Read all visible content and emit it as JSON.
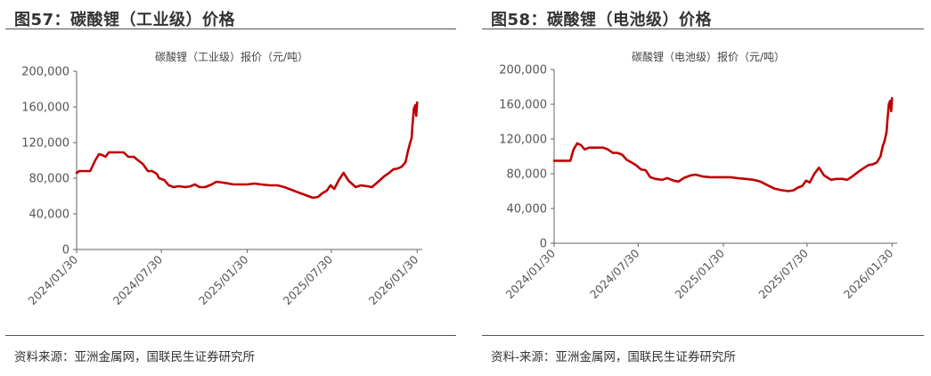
{
  "figures": [
    {
      "label": "图57：碳酸锂（工业级）价格",
      "source": "资料来源：亚洲金属网，国联民生证券研究所"
    },
    {
      "label": "图58：碳酸锂（电池级）价格",
      "source": "资料-来源：亚洲金属网，国联民生证券研究所"
    }
  ],
  "colors": {
    "line": "#c00000",
    "axis": "#666666",
    "text": "#555555"
  },
  "chart_data": [
    {
      "type": "line",
      "title": "碳酸锂（工业级）报价（元/吨）",
      "xlabel": "",
      "ylabel": "",
      "x_ticks": [
        "2024/01/30",
        "2024/07/30",
        "2025/01/30",
        "2025/07/30",
        "2026/01/30"
      ],
      "y_ticks": [
        "0",
        "40,000",
        "80,000",
        "120,000",
        "160,000",
        "200,000"
      ],
      "ylim": [
        0,
        200000
      ],
      "xlim": [
        "2024-01-30",
        "2026-02-10"
      ],
      "grid": false,
      "series": [
        {
          "x": [
            "2024-01-30",
            "2024-02-05",
            "2024-02-20",
            "2024-02-28",
            "2024-03-10",
            "2024-03-18",
            "2024-03-25",
            "2024-04-01",
            "2024-04-08",
            "2024-04-25",
            "2024-05-10",
            "2024-05-20",
            "2024-06-01",
            "2024-06-10",
            "2024-06-20",
            "2024-07-01",
            "2024-07-10",
            "2024-07-20",
            "2024-07-25",
            "2024-08-05",
            "2024-08-15",
            "2024-08-25",
            "2024-09-05",
            "2024-09-20",
            "2024-10-01",
            "2024-10-10",
            "2024-10-20",
            "2024-11-01",
            "2024-11-15",
            "2024-11-25",
            "2024-12-10",
            "2025-01-01",
            "2025-01-30",
            "2025-02-15",
            "2025-03-01",
            "2025-03-20",
            "2025-04-05",
            "2025-04-20",
            "2025-05-10",
            "2025-05-25",
            "2025-06-10",
            "2025-06-20",
            "2025-07-01",
            "2025-07-10",
            "2025-07-20",
            "2025-07-28",
            "2025-08-05",
            "2025-08-15",
            "2025-08-25",
            "2025-09-05",
            "2025-09-20",
            "2025-10-01",
            "2025-10-15",
            "2025-10-25",
            "2025-11-05",
            "2025-11-20",
            "2025-12-01",
            "2025-12-10",
            "2025-12-20",
            "2025-12-28",
            "2026-01-05",
            "2026-01-10",
            "2026-01-14",
            "2026-01-18",
            "2026-01-20",
            "2026-01-23",
            "2026-01-26",
            "2026-01-28",
            "2026-01-30"
          ],
          "values": [
            86000,
            88000,
            88000,
            88000,
            100000,
            107000,
            106000,
            104000,
            109000,
            109000,
            109000,
            104000,
            104000,
            100000,
            96000,
            88000,
            88000,
            85000,
            80000,
            78000,
            72000,
            70000,
            71000,
            70000,
            71000,
            73000,
            70000,
            70000,
            73000,
            76000,
            75000,
            73000,
            73000,
            74000,
            73000,
            72000,
            72000,
            70000,
            66000,
            63000,
            60000,
            58000,
            59000,
            63000,
            66000,
            72000,
            68000,
            78000,
            86000,
            77000,
            70000,
            72000,
            71000,
            70000,
            75000,
            82000,
            86000,
            90000,
            91000,
            93000,
            98000,
            110000,
            118000,
            125000,
            140000,
            158000,
            162000,
            150000,
            165000
          ]
        }
      ]
    },
    {
      "type": "line",
      "title": "碳酸锂（电池级）报价（元/吨）",
      "xlabel": "",
      "ylabel": "",
      "x_ticks": [
        "2024/01/30",
        "2024/07/30",
        "2025/01/30",
        "2025/07/30",
        "2026/01/30"
      ],
      "y_ticks": [
        "0",
        "40,000",
        "80,000",
        "120,000",
        "160,000",
        "200,000"
      ],
      "ylim": [
        0,
        200000
      ],
      "xlim": [
        "2024-01-30",
        "2026-02-10"
      ],
      "grid": false,
      "series": [
        {
          "x": [
            "2024-01-30",
            "2024-02-10",
            "2024-02-25",
            "2024-03-05",
            "2024-03-12",
            "2024-03-20",
            "2024-03-28",
            "2024-04-05",
            "2024-04-15",
            "2024-05-01",
            "2024-05-15",
            "2024-05-25",
            "2024-06-05",
            "2024-06-15",
            "2024-06-25",
            "2024-07-05",
            "2024-07-15",
            "2024-07-25",
            "2024-08-05",
            "2024-08-15",
            "2024-08-25",
            "2024-09-05",
            "2024-09-20",
            "2024-10-01",
            "2024-10-15",
            "2024-10-25",
            "2024-11-05",
            "2024-11-20",
            "2024-12-01",
            "2024-12-15",
            "2025-01-01",
            "2025-01-30",
            "2025-02-15",
            "2025-03-01",
            "2025-03-20",
            "2025-04-05",
            "2025-04-20",
            "2025-05-05",
            "2025-05-20",
            "2025-06-05",
            "2025-06-20",
            "2025-07-01",
            "2025-07-10",
            "2025-07-20",
            "2025-07-28",
            "2025-08-05",
            "2025-08-15",
            "2025-08-25",
            "2025-09-05",
            "2025-09-20",
            "2025-10-01",
            "2025-10-15",
            "2025-10-25",
            "2025-11-05",
            "2025-11-20",
            "2025-12-01",
            "2025-12-10",
            "2025-12-20",
            "2025-12-28",
            "2026-01-05",
            "2026-01-10",
            "2026-01-14",
            "2026-01-18",
            "2026-01-20",
            "2026-01-23",
            "2026-01-26",
            "2026-01-28",
            "2026-01-30"
          ],
          "values": [
            95000,
            95000,
            95000,
            95000,
            108000,
            115000,
            113000,
            108000,
            110000,
            110000,
            110000,
            108000,
            104000,
            104000,
            102000,
            96000,
            93000,
            90000,
            85000,
            84000,
            76000,
            74000,
            73000,
            75000,
            72000,
            71000,
            75000,
            78000,
            79000,
            77000,
            76000,
            76000,
            76000,
            75000,
            74000,
            73000,
            71000,
            67000,
            63000,
            61000,
            60000,
            61000,
            64000,
            66000,
            72000,
            70000,
            80000,
            87000,
            78000,
            73000,
            74000,
            74000,
            73000,
            77000,
            83000,
            87000,
            90000,
            91000,
            93000,
            100000,
            112000,
            118000,
            128000,
            142000,
            160000,
            164000,
            152000,
            167000
          ]
        }
      ]
    }
  ]
}
